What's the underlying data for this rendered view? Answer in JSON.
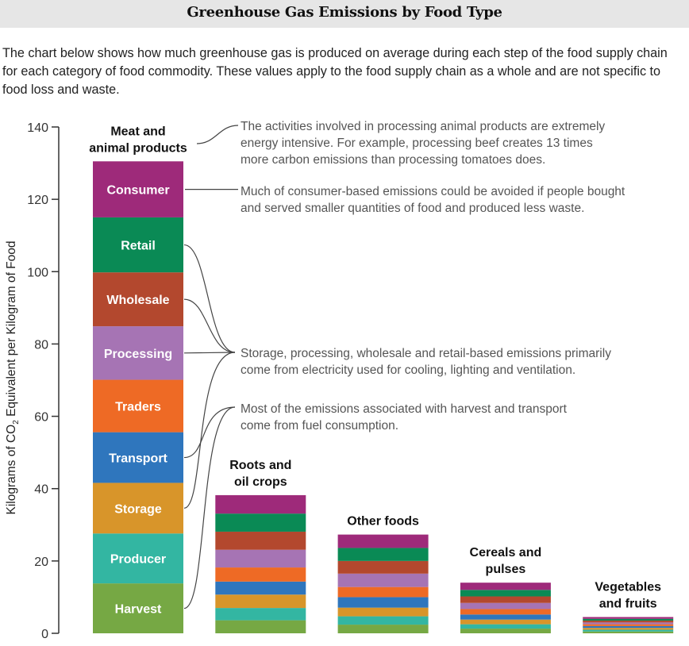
{
  "header": {
    "title": "Greenhouse Gas Emissions by Food Type"
  },
  "intro": {
    "text": "The chart below shows how much greenhouse gas is produced on average during each step of the food supply chain for each category of food commodity. These values apply to the food supply chain as a whole and are not specific to food loss and waste."
  },
  "chart_data": {
    "type": "bar",
    "stacked": true,
    "title": "Greenhouse Gas Emissions by Food Type",
    "xlabel": "",
    "ylabel": "Kilograms of CO₂ Equivalent per Kilogram of Food",
    "ylabel_parts": {
      "before": "Kilograms of CO",
      "subscript": "2",
      "after": " Equivalent per Kilogram of Food"
    },
    "ylim": [
      0,
      140
    ],
    "yticks": [
      0,
      20,
      40,
      60,
      80,
      100,
      120,
      140
    ],
    "grid": false,
    "legend": "inline labels on first bar",
    "categories": [
      "Meat and animal products",
      "Roots and oil crops",
      "Other foods",
      "Cereals and pulses",
      "Vegetables and fruits"
    ],
    "category_label_lines": [
      [
        "Meat and",
        "animal products"
      ],
      [
        "Roots and",
        "oil crops"
      ],
      [
        "Other foods"
      ],
      [
        "Cereals and",
        "pulses"
      ],
      [
        "Vegetables",
        "and fruits"
      ]
    ],
    "series": [
      {
        "name": "Harvest",
        "color": "#76a844",
        "values": [
          13.8,
          3.6,
          2.4,
          1.3,
          0.5
        ]
      },
      {
        "name": "Producer",
        "color": "#33b6a2",
        "values": [
          13.8,
          3.4,
          2.3,
          1.2,
          0.5
        ]
      },
      {
        "name": "Storage",
        "color": "#d8952a",
        "values": [
          14.0,
          3.7,
          2.4,
          1.3,
          0.5
        ]
      },
      {
        "name": "Transport",
        "color": "#2f76bd",
        "values": [
          14.0,
          3.6,
          2.9,
          1.4,
          0.5
        ]
      },
      {
        "name": "Traders",
        "color": "#ee6a25",
        "values": [
          14.5,
          3.9,
          2.8,
          1.5,
          0.5
        ]
      },
      {
        "name": "Processing",
        "color": "#a674b4",
        "values": [
          14.8,
          4.9,
          3.7,
          1.7,
          0.5
        ]
      },
      {
        "name": "Wholesale",
        "color": "#b3482e",
        "values": [
          14.9,
          5.0,
          3.5,
          1.8,
          0.5
        ]
      },
      {
        "name": "Retail",
        "color": "#0a8a55",
        "values": [
          15.2,
          5.0,
          3.6,
          1.8,
          0.5
        ]
      },
      {
        "name": "Consumer",
        "color": "#9e2a7a",
        "values": [
          15.5,
          5.1,
          3.7,
          2.0,
          0.5
        ]
      }
    ],
    "totals": [
      130.5,
      38.2,
      27.3,
      14.0,
      4.5
    ],
    "annotations": [
      {
        "lines": [
          "The activities involved in processing animal products are extremely",
          "energy intensive. For example, processing beef creates 13 times",
          "more carbon emissions than processing tomatoes does."
        ],
        "points_to": [
          "Meat and animal products"
        ]
      },
      {
        "lines": [
          "Much of consumer-based emissions could be avoided if people bought",
          "and served smaller quantities of food and produced less waste."
        ],
        "points_to": [
          "Consumer"
        ]
      },
      {
        "lines": [
          "Storage, processing, wholesale and retail-based emissions primarily",
          "come from electricity used for cooling, lighting and ventilation."
        ],
        "points_to": [
          "Retail",
          "Wholesale",
          "Processing",
          "Storage"
        ]
      },
      {
        "lines": [
          "Most of the emissions associated with harvest and transport",
          "come from fuel consumption."
        ],
        "points_to": [
          "Transport",
          "Harvest"
        ]
      }
    ]
  }
}
